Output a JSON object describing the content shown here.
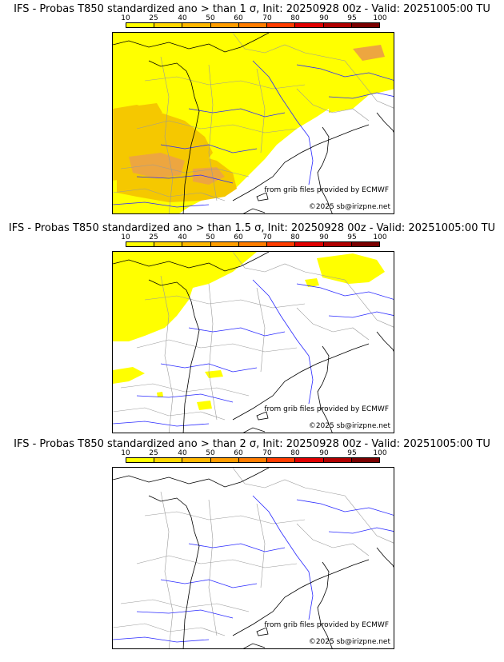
{
  "colorbar": {
    "labels": [
      "10",
      "25",
      "40",
      "50",
      "60",
      "70",
      "80",
      "90",
      "95",
      "100"
    ],
    "colors": [
      "#ffff00",
      "#ffd700",
      "#ffb700",
      "#ff9c00",
      "#ff7c00",
      "#ff3c00",
      "#e00000",
      "#b00000",
      "#7a0000"
    ]
  },
  "colors": {
    "prob_low": "#ffff00",
    "prob_mid": "#f5c800",
    "prob_high": "#eda640",
    "coast": "#000000",
    "rivers": "#2a2aff",
    "borders": "#9a9a9a"
  },
  "panels": [
    {
      "title": "IFS - Probas T850  standardized ano > than 1 σ, Init: 20250928 00z - Valid: 20251005:00 TU",
      "ecmwf": "from grib files provided by ECMWF",
      "copyright": "©2025 sb@irizpne.net"
    },
    {
      "title": "IFS - Probas T850  standardized ano > than 1.5 σ, Init: 20250928 00z - Valid: 20251005:00 TU",
      "ecmwf": "from grib files provided by ECMWF",
      "copyright": "©2025 sb@irizpne.net"
    },
    {
      "title": "IFS - Probas T850  standardized ano > than 2 σ, Init: 20250928 00z - Valid: 20251005:00 TU",
      "ecmwf": "from grib files provided by ECMWF",
      "copyright": "©2025 sb@irizpne.net"
    }
  ]
}
